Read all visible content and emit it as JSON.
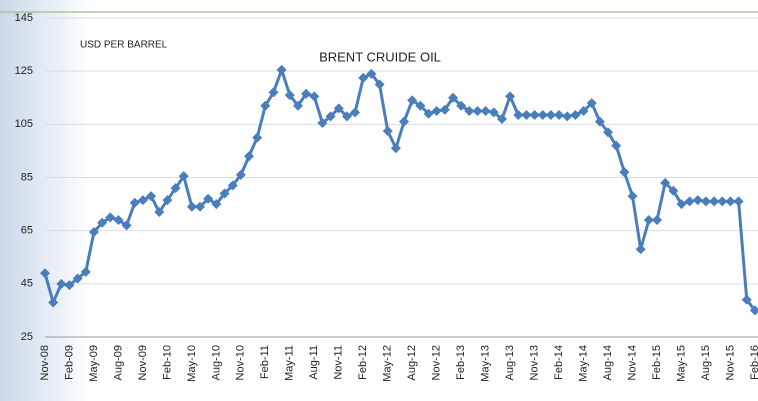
{
  "chart_data": {
    "type": "line",
    "title": "BRENT CRUIDE OIL",
    "y_label": "USD PER BARREL",
    "categories": [
      "Nov-08",
      null,
      null,
      "Feb-09",
      null,
      null,
      "May-09",
      null,
      null,
      "Aug-09",
      null,
      null,
      "Nov-09",
      null,
      null,
      "Feb-10",
      null,
      null,
      "May-10",
      null,
      null,
      "Aug-10",
      null,
      null,
      "Nov-10",
      null,
      null,
      "Feb-11",
      null,
      null,
      "May-11",
      null,
      null,
      "Aug-11",
      null,
      null,
      "Nov-11",
      null,
      null,
      "Feb-12",
      null,
      null,
      "May-12",
      null,
      null,
      "Aug-12",
      null,
      null,
      "Nov-12",
      null,
      null,
      "Feb-13",
      null,
      null,
      "May-13",
      null,
      null,
      "Aug-13",
      null,
      null,
      "Nov-13",
      null,
      null,
      "Feb-14",
      null,
      null,
      "May-14",
      null,
      null,
      "Aug-14",
      null,
      null,
      "Nov-14",
      null,
      null,
      "Feb-15",
      null,
      null,
      "May-15",
      null,
      null,
      "Aug-15",
      null,
      null,
      "Nov-15",
      null,
      null,
      "Feb-16"
    ],
    "series": [
      {
        "name": "Brent",
        "color": "#4a7ebb",
        "values": [
          49,
          38,
          45,
          44.5,
          47,
          49.5,
          64.5,
          68,
          70,
          69,
          67,
          75.5,
          76.5,
          78,
          72,
          76.5,
          81,
          85.5,
          74,
          74,
          77,
          75,
          79,
          82,
          86,
          93,
          100,
          112,
          117,
          125.5,
          116,
          112,
          116.5,
          115.5,
          105.5,
          108,
          111,
          108,
          109.5,
          122.5,
          124,
          120,
          102.5,
          96,
          106,
          114,
          112,
          109,
          110,
          110.5,
          115,
          112,
          110,
          110,
          110,
          109.5,
          107,
          115.5,
          108.5,
          108.5,
          108.5,
          108.5,
          108.5,
          108.5,
          108,
          108.5,
          110,
          113,
          106,
          102,
          97,
          87,
          78,
          58,
          69,
          69,
          83,
          80,
          75,
          76,
          76.5,
          76,
          76,
          76,
          76,
          76,
          39,
          35
        ]
      }
    ],
    "ylim": [
      25,
      145
    ],
    "yticks": [
      25,
      45,
      65,
      85,
      105,
      125,
      145
    ],
    "grid": true
  }
}
